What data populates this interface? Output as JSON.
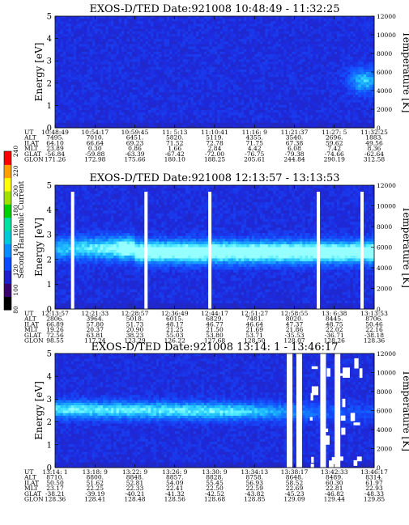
{
  "figure": {
    "colorbar": {
      "label": "Second Harmonic Current",
      "ticks": [
        "80",
        "100",
        "120",
        "140",
        "160",
        "180",
        "200",
        "220",
        "240"
      ],
      "colors": [
        "#000000",
        "#3a006e",
        "#2020c8",
        "#0a4cff",
        "#0a8cff",
        "#00c8d8",
        "#00e0a0",
        "#00d000",
        "#9ee000",
        "#ffff00",
        "#ffa000",
        "#ff0000"
      ]
    },
    "ephemeris_labels": [
      "UT",
      "ALT",
      "ILAT",
      "MLT",
      "GLAT",
      "GLON"
    ]
  },
  "chart_data": [
    {
      "type": "heatmap",
      "title": "EXOS-D/TED   Date:921008   10:48:49 - 11:32:25",
      "ylabel": "Energy [eV]",
      "ylabel_right": "Temperature [K]",
      "ylim": [
        0,
        5
      ],
      "ylim_right": [
        0,
        12000
      ],
      "yticks": [
        "0",
        "1",
        "2",
        "3",
        "4",
        "5"
      ],
      "yticks_right": [
        "0",
        "2000",
        "4000",
        "6000",
        "8000",
        "10000",
        "12000"
      ],
      "band": {
        "center_ev": null,
        "intensity": 0.0
      },
      "hotspot": {
        "x_frac": 0.97,
        "energy_ev": 2.1,
        "intensity": 0.55
      },
      "gaps_x_frac": [],
      "ephemeris": {
        "UT": [
          "10:48:49",
          "10:54:17",
          "10:59:45",
          "11: 5:13",
          "11:10:41",
          "11:16: 9",
          "11:21:37",
          "11:27: 5",
          "11:32:25"
        ],
        "ALT": [
          "7495.",
          "7010.",
          "6451.",
          "5820.",
          "5119.",
          "4355.",
          "3540.",
          "2696.",
          "1883."
        ],
        "ILAT": [
          "64.10",
          "66.64",
          "69.23",
          "71.52",
          "72.78",
          "71.75",
          "67.38",
          "59.62",
          "49.56"
        ],
        "MLT": [
          "23.89",
          "0.30",
          "0.86",
          "1.66",
          "2.84",
          "4.42",
          "6.08",
          "7.42",
          "8.36"
        ],
        "GLAT": [
          "-56.84",
          "-59.88",
          "-63.39",
          "-67.42",
          "-72.00",
          "-76.75",
          "-79.38",
          "-74.66",
          "-62.64"
        ],
        "GLON": [
          "171.26",
          "172.98",
          "175.66",
          "180.10",
          "188.25",
          "205.61",
          "244.84",
          "290.19",
          "312.58"
        ]
      }
    },
    {
      "type": "heatmap",
      "title": "EXOS-D/TED   Date:921008   12:13:57 - 13:13:53",
      "ylabel": "Energy [eV]",
      "ylabel_right": "Temperature [K]",
      "ylim": [
        0,
        5
      ],
      "ylim_right": [
        0,
        12000
      ],
      "yticks": [
        "0",
        "1",
        "2",
        "3",
        "4",
        "5"
      ],
      "yticks_right": [
        "0",
        "2000",
        "4000",
        "6000",
        "8000",
        "10000",
        "12000"
      ],
      "band": {
        "center_ev": 2.3,
        "intensity": 0.9
      },
      "hotspot": null,
      "gaps_x_frac": [
        0.055,
        0.285,
        0.485,
        0.825,
        0.962
      ],
      "ephemeris": {
        "UT": [
          "12:13:57",
          "12:21:33",
          "12:28:57",
          "12:36:49",
          "12:44:17",
          "12:51:27",
          "12:58:55",
          "13: 6:38",
          "13:13:53"
        ],
        "ALT": [
          "2806.",
          "3964.",
          "5018.",
          "6015.",
          "6829.",
          "7481.",
          "8020.",
          "8445.",
          "8706."
        ],
        "ILAT": [
          "66.89",
          "57.80",
          "51.73",
          "48.17",
          "46.77",
          "46.64",
          "47.37",
          "48.75",
          "50.46"
        ],
        "MLT": [
          "19.26",
          "20.37",
          "20.90",
          "21.25",
          "21.50",
          "21.69",
          "21.86",
          "22.02",
          "22.16"
        ],
        "GLAT": [
          "72.56",
          "63.81",
          "38.23",
          "55.03",
          "53.80",
          "53.71",
          "-35.53",
          "-36.71",
          "-38.18"
        ],
        "GLON": [
          "98.55",
          "117.24",
          "123.29",
          "126.22",
          "127.68",
          "128.50",
          "128.07",
          "128.26",
          "128.36"
        ]
      }
    },
    {
      "type": "heatmap",
      "title": "EXOS-D/TED   Date:921008   13:14: 1 - 13:46:17",
      "ylabel": "Energy [eV]",
      "ylabel_right": "Temperature [K]",
      "ylim": [
        0,
        5
      ],
      "ylim_right": [
        0,
        12000
      ],
      "yticks": [
        "0",
        "1",
        "2",
        "3",
        "4",
        "5"
      ],
      "yticks_right": [
        "0",
        "2000",
        "4000",
        "6000",
        "8000",
        "10000",
        "12000"
      ],
      "band": {
        "center_ev": 2.5,
        "intensity": 0.65
      },
      "hotspot": null,
      "gaps_x_frac": [
        0.735,
        0.765,
        0.84,
        0.885
      ],
      "ephemeris": {
        "UT": [
          "13:14: 1",
          "13:18: 9",
          "13:22: 9",
          "13:26: 9",
          "13:30: 9",
          "13:34:13",
          "13:38:17",
          "13:42:33",
          "13:46:17"
        ],
        "ALT": [
          "8710.",
          "8800.",
          "8848.",
          "8857.",
          "8828.",
          "8758.",
          "8648.",
          "8489.",
          "8314."
        ],
        "ILAT": [
          "50.50",
          "51.62",
          "52.81",
          "54.09",
          "55.45",
          "56.93",
          "58.52",
          "60.30",
          "61.97"
        ],
        "MLT": [
          "23.17",
          "22.25",
          "22.33",
          "22.41",
          "22.50",
          "22.59",
          "22.69",
          "22.81",
          "22.93"
        ],
        "GLAT": [
          "-38.21",
          "-39.19",
          "-40.21",
          "-41.32",
          "-42.52",
          "-43.82",
          "-45.23",
          "-46.82",
          "-48.33"
        ],
        "GLON": [
          "128.36",
          "128.41",
          "128.48",
          "128.56",
          "128.68",
          "128.85",
          "129.09",
          "129.44",
          "129.85"
        ]
      }
    }
  ]
}
